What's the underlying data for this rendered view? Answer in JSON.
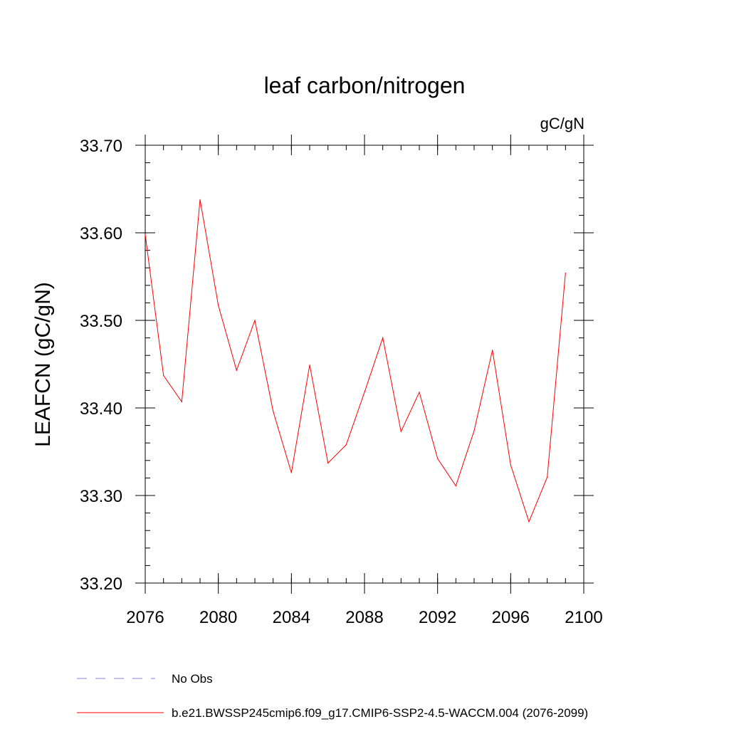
{
  "chart_data": {
    "type": "line",
    "title": "leaf carbon/nitrogen",
    "units_label": "gC/gN",
    "ylabel": "LEAFCN  (gC/gN)",
    "xlabel": "",
    "xlim": [
      2076,
      2100
    ],
    "ylim": [
      33.2,
      33.7
    ],
    "x_ticks": [
      2076,
      2080,
      2084,
      2088,
      2092,
      2096,
      2100
    ],
    "x_tick_labels": [
      "2076",
      "2080",
      "2084",
      "2088",
      "2092",
      "2096",
      "2100"
    ],
    "y_ticks": [
      33.2,
      33.3,
      33.4,
      33.5,
      33.6,
      33.7
    ],
    "y_tick_labels": [
      "33.20",
      "33.30",
      "33.40",
      "33.50",
      "33.60",
      "33.70"
    ],
    "x_minor_step": 1,
    "y_minor_step": 0.02,
    "series": [
      {
        "name": "b.e21.BWSSP245cmip6.f09_g17.CMIP6-SSP2-4.5-WACCM.004 (2076-2099)",
        "color": "#ff0000",
        "x": [
          2076,
          2077,
          2078,
          2079,
          2080,
          2081,
          2082,
          2083,
          2084,
          2085,
          2086,
          2087,
          2088,
          2089,
          2090,
          2091,
          2092,
          2093,
          2094,
          2095,
          2096,
          2097,
          2098,
          2099
        ],
        "values": [
          33.598,
          33.437,
          33.407,
          33.638,
          33.517,
          33.443,
          33.5,
          33.396,
          33.326,
          33.449,
          33.337,
          33.358,
          33.418,
          33.48,
          33.373,
          33.418,
          33.342,
          33.311,
          33.374,
          33.466,
          33.335,
          33.27,
          33.321,
          33.554
        ]
      }
    ],
    "legend": [
      {
        "label": "No Obs",
        "color": "#8a7fd0",
        "style": "dashed"
      },
      {
        "label": "b.e21.BWSSP245cmip6.f09_g17.CMIP6-SSP2-4.5-WACCM.004 (2076-2099)",
        "color": "#ff0000",
        "style": "solid"
      }
    ]
  }
}
